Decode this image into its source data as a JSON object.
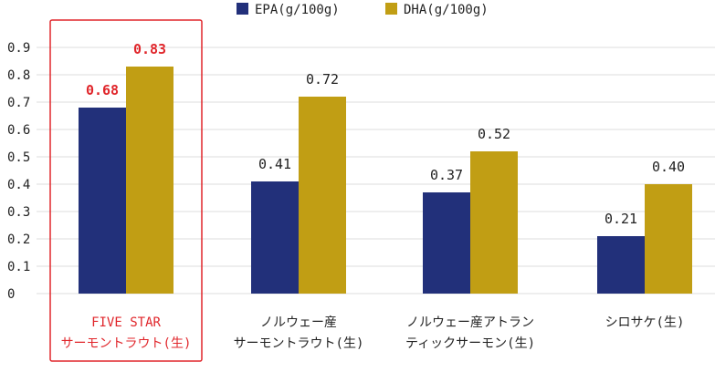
{
  "chart_data": {
    "type": "bar",
    "categories": [
      [
        "FIVE STAR",
        "サーモントラウト(生)"
      ],
      [
        "ノルウェー産",
        "サーモントラウト(生)"
      ],
      [
        "ノルウェー産アトラン",
        "ティックサーモン(生)"
      ],
      [
        "シロサケ(生)"
      ]
    ],
    "series": [
      {
        "name": "EPA(g/100g)",
        "values": [
          0.68,
          0.41,
          0.37,
          0.21
        ],
        "labels": [
          "0.68",
          "0.41",
          "0.37",
          "0.21"
        ],
        "color": "#22307a"
      },
      {
        "name": "DHA(g/100g)",
        "values": [
          0.83,
          0.72,
          0.52,
          0.4
        ],
        "labels": [
          "0.83",
          "0.72",
          "0.52",
          "0.40"
        ],
        "color": "#c19e14"
      }
    ],
    "yticks": [
      "0",
      "0.1",
      "0.2",
      "0.3",
      "0.4",
      "0.5",
      "0.6",
      "0.7",
      "0.8",
      "0.9"
    ],
    "ylim": [
      0,
      0.9
    ],
    "grid": true,
    "legend": "top-center",
    "highlight_category_index": 0,
    "highlight_color": "#e0262b"
  }
}
